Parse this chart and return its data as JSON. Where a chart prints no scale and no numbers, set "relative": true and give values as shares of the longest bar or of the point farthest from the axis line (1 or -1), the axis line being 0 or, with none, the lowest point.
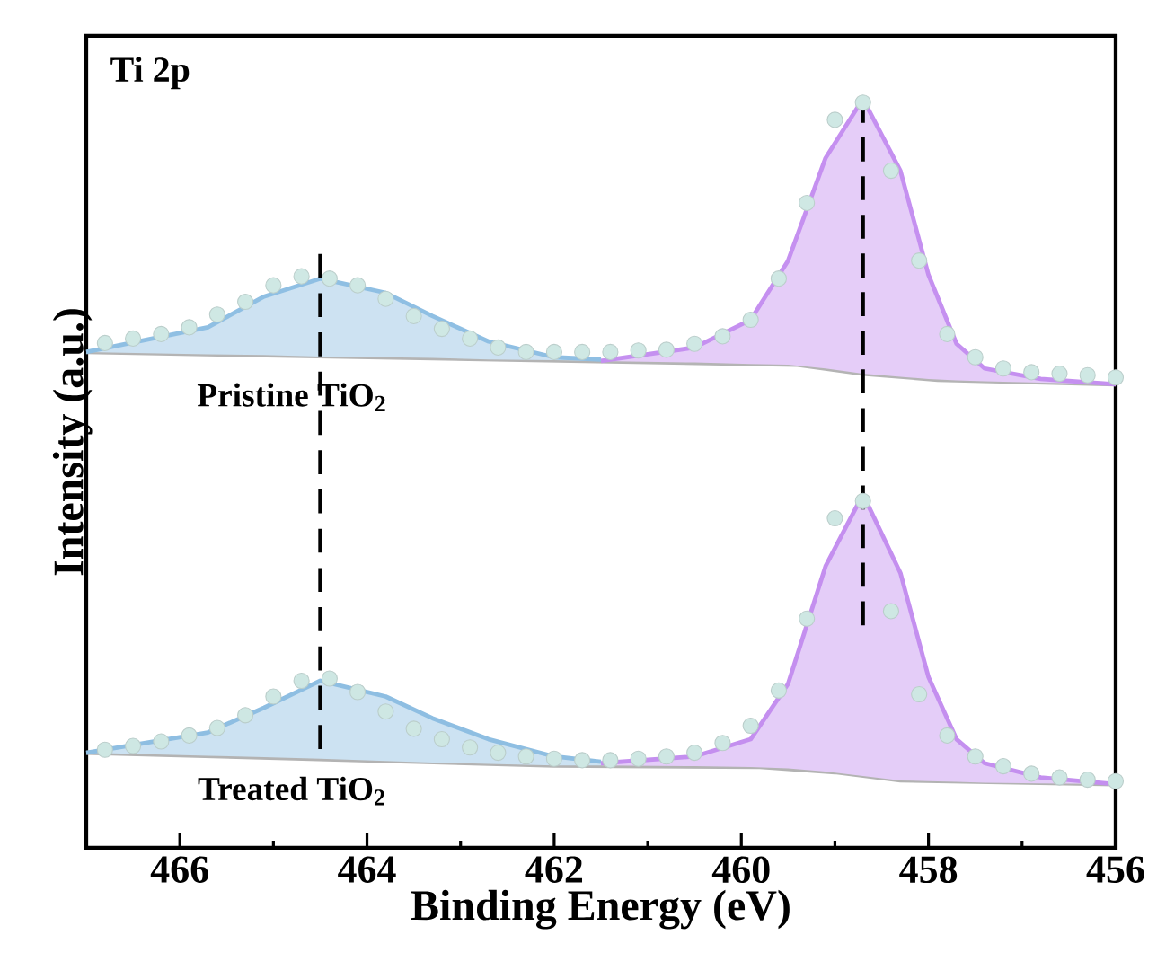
{
  "chart_data": {
    "type": "line",
    "title": "Ti 2p",
    "xlabel": "Binding Energy (eV)",
    "ylabel": "Intensity (a.u.)",
    "relative": true,
    "xlim": [
      467,
      456
    ],
    "xticks": [
      466,
      464,
      462,
      460,
      458,
      456
    ],
    "annotations": [
      "Pristine TiO$_{2}$",
      "Treated TiO$_{2}$"
    ],
    "series": [
      {
        "color": "#b4b4b4",
        "x": [
          467,
          459.4,
          458.7,
          457.9,
          456
        ],
        "values": [
          0.662,
          0.645,
          0.633,
          0.625,
          0.619
        ]
      },
      {
        "color": "#8fbfe3",
        "x": [
          467,
          465.7,
          465.1,
          464.5,
          463.8,
          463.3,
          462.7,
          462.0,
          461.5
        ],
        "values": [
          0.662,
          0.695,
          0.736,
          0.76,
          0.741,
          0.71,
          0.676,
          0.655,
          0.652
        ],
        "upper": [
          0.662,
          0.695,
          0.736,
          0.76,
          0.741,
          0.71,
          0.676,
          0.655,
          0.652
        ],
        "lower": [
          0.662,
          0.659,
          0.658,
          0.656,
          0.655,
          0.654,
          0.652,
          0.651,
          0.65
        ]
      },
      {
        "color": "#c590f0",
        "x": [
          461.5,
          460.5,
          459.9,
          459.5,
          459.1,
          458.7,
          458.3,
          458.0,
          457.7,
          457.4,
          456.8,
          456
        ],
        "values": [
          0.65,
          0.668,
          0.705,
          0.784,
          0.921,
          1.0,
          0.904,
          0.765,
          0.673,
          0.64,
          0.626,
          0.619
        ],
        "upper": [
          0.65,
          0.668,
          0.705,
          0.784,
          0.921,
          1.0,
          0.904,
          0.765,
          0.673,
          0.64,
          0.626,
          0.619
        ],
        "lower": [
          0.65,
          0.648,
          0.646,
          0.645,
          0.64,
          0.633,
          0.629,
          0.626,
          0.624,
          0.623,
          0.621,
          0.619
        ]
      },
      {
        "type": "scatter",
        "marker": "circle",
        "color": "#cfe8e4",
        "x": [
          466.8,
          466.5,
          466.2,
          465.9,
          465.6,
          465.3,
          465.0,
          464.7,
          464.4,
          464.1,
          463.8,
          463.5,
          463.2,
          462.9,
          462.6,
          462.3,
          462.0,
          461.7,
          461.4,
          461.1,
          460.8,
          460.5,
          460.2,
          459.9,
          459.6,
          459.3,
          459.0,
          458.7,
          458.4,
          458.1,
          457.8,
          457.5,
          457.2,
          456.9,
          456.6,
          456.3,
          456.0
        ],
        "values": [
          0.674,
          0.68,
          0.686,
          0.695,
          0.712,
          0.729,
          0.751,
          0.763,
          0.76,
          0.751,
          0.733,
          0.71,
          0.693,
          0.68,
          0.668,
          0.662,
          0.662,
          0.662,
          0.662,
          0.664,
          0.665,
          0.673,
          0.683,
          0.705,
          0.76,
          0.861,
          0.972,
          0.995,
          0.904,
          0.784,
          0.686,
          0.655,
          0.64,
          0.635,
          0.633,
          0.631,
          0.628
        ]
      },
      {
        "color": "#b3b3b3",
        "x": [
          467,
          462.0,
          459.8,
          459.0,
          458.3,
          456
        ],
        "values": [
          0.127,
          0.11,
          0.108,
          0.101,
          0.09,
          0.085
        ]
      },
      {
        "color": "#8ebee2",
        "x": [
          467,
          465.7,
          465.1,
          464.5,
          463.8,
          463.3,
          462.7,
          462.0,
          461.5
        ],
        "values": [
          0.127,
          0.154,
          0.187,
          0.223,
          0.202,
          0.173,
          0.145,
          0.122,
          0.115
        ],
        "upper": [
          0.127,
          0.154,
          0.187,
          0.223,
          0.202,
          0.173,
          0.145,
          0.122,
          0.115
        ],
        "lower": [
          0.127,
          0.123,
          0.121,
          0.119,
          0.116,
          0.114,
          0.112,
          0.11,
          0.11
        ]
      },
      {
        "color": "#c48fef",
        "x": [
          461.5,
          460.5,
          459.9,
          459.5,
          459.1,
          458.7,
          458.3,
          458.0,
          457.7,
          457.4,
          456.8,
          456
        ],
        "values": [
          0.113,
          0.122,
          0.145,
          0.219,
          0.376,
          0.472,
          0.367,
          0.228,
          0.145,
          0.113,
          0.094,
          0.085
        ],
        "upper": [
          0.113,
          0.122,
          0.145,
          0.219,
          0.376,
          0.472,
          0.367,
          0.228,
          0.145,
          0.113,
          0.094,
          0.085
        ],
        "lower": [
          0.11,
          0.109,
          0.108,
          0.106,
          0.102,
          0.096,
          0.09,
          0.089,
          0.088,
          0.087,
          0.086,
          0.085
        ]
      },
      {
        "type": "scatter",
        "marker": "circle",
        "color": "#cee7e3",
        "x": [
          466.8,
          466.5,
          466.2,
          465.9,
          465.6,
          465.3,
          465.0,
          464.7,
          464.4,
          464.1,
          463.8,
          463.5,
          463.2,
          462.9,
          462.6,
          462.3,
          462.0,
          461.7,
          461.4,
          461.1,
          460.8,
          460.5,
          460.2,
          459.9,
          459.6,
          459.3,
          459.0,
          458.7,
          458.4,
          458.1,
          457.8,
          457.5,
          457.2,
          456.9,
          456.6,
          456.3,
          456.0
        ],
        "values": [
          0.131,
          0.136,
          0.142,
          0.15,
          0.16,
          0.177,
          0.202,
          0.223,
          0.226,
          0.208,
          0.182,
          0.159,
          0.145,
          0.134,
          0.127,
          0.122,
          0.119,
          0.117,
          0.117,
          0.119,
          0.122,
          0.127,
          0.14,
          0.163,
          0.21,
          0.306,
          0.44,
          0.463,
          0.316,
          0.205,
          0.15,
          0.122,
          0.109,
          0.099,
          0.094,
          0.091,
          0.089
        ]
      },
      {
        "line_style": "dashed",
        "color": "#000000",
        "x": [
          464.5,
          464.5
        ],
        "values": [
          0.793,
          0.132
        ]
      },
      {
        "line_style": "dashed",
        "color": "#000000",
        "x": [
          458.7,
          458.7
        ],
        "values": [
          1.0,
          0.297
        ]
      }
    ]
  }
}
